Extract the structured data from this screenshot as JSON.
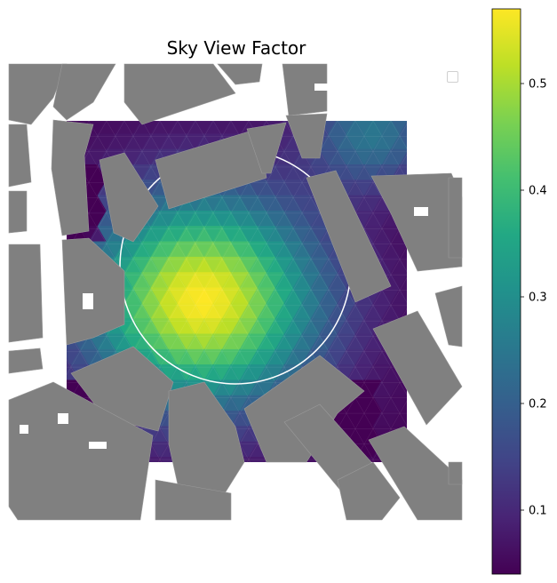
{
  "chart_data": {
    "type": "heatmap",
    "title": "Sky View Factor",
    "colormap": "viridis",
    "colorbar": {
      "vmin": 0.04,
      "vmax": 0.57,
      "ticks": [
        0.1,
        0.2,
        0.3,
        0.4,
        0.5
      ],
      "tick_labels": [
        "0.1",
        "0.2",
        "0.3",
        "0.4",
        "0.5"
      ]
    },
    "field_description": "Sky view factor over an urban square, highest in the open plaza (peak ~0.57) and lowest in narrow streets next to buildings (~0.05).",
    "peak_value": 0.57,
    "min_value": 0.04,
    "building_color": "#808080",
    "legend": "top-right (empty box)",
    "grid": false
  }
}
